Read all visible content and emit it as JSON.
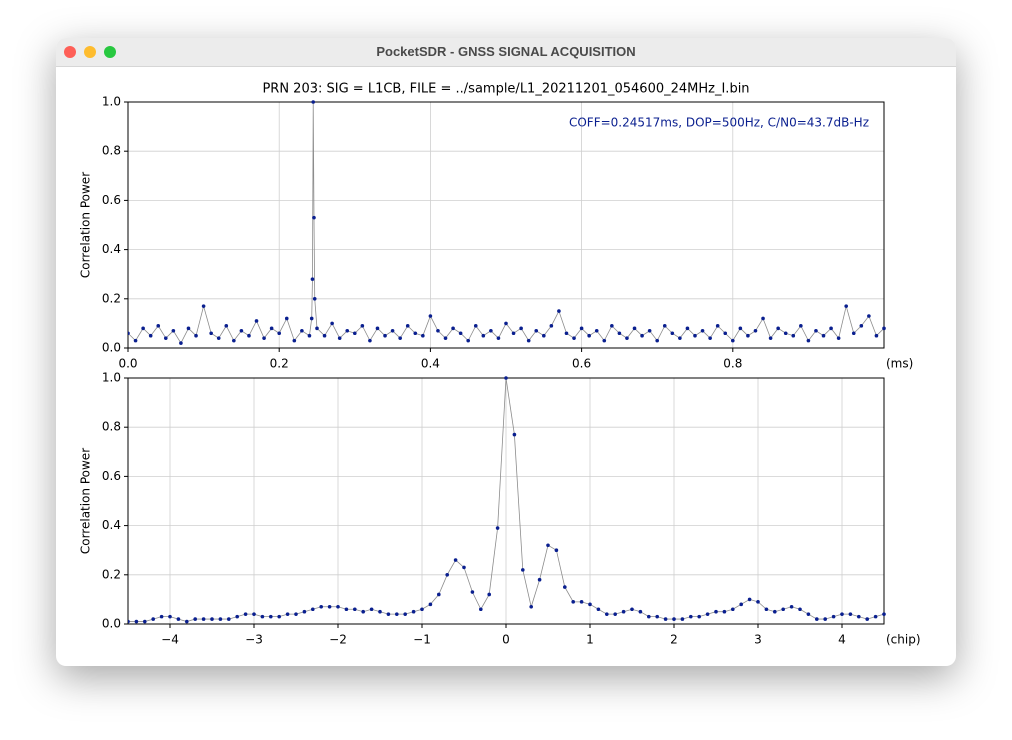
{
  "window": {
    "title": "PocketSDR - GNSS SIGNAL ACQUISITION"
  },
  "chart_data": [
    {
      "type": "line",
      "title": "PRN 203: SIG = L1CB, FILE = ../sample/L1_20211201_054600_24MHz_I.bin",
      "annotation": "COFF=0.24517ms, DOP=500Hz, C/N0=43.7dB-Hz",
      "y_label": "Correlation Power",
      "x_label": "(ms)",
      "xlim": [
        0,
        1.0
      ],
      "ylim": [
        0,
        1.0
      ],
      "xticks": [
        {
          "value": 0,
          "label": "0.0"
        },
        {
          "value": 0.2,
          "label": "0.2"
        },
        {
          "value": 0.4,
          "label": "0.4"
        },
        {
          "value": 0.6,
          "label": "0.6"
        },
        {
          "value": 0.8,
          "label": "0.8"
        }
      ],
      "yticks": [
        {
          "value": 0,
          "label": "0.0"
        },
        {
          "value": 0.2,
          "label": "0.2"
        },
        {
          "value": 0.4,
          "label": "0.4"
        },
        {
          "value": 0.6,
          "label": "0.6"
        },
        {
          "value": 0.8,
          "label": "0.8"
        },
        {
          "value": 1.0,
          "label": "1.0"
        }
      ],
      "grid": true,
      "line_color": "#8c8c8c",
      "series": [
        {
          "color": "#0a1f8f",
          "x": [
            0,
            0.01,
            0.02,
            0.03,
            0.04,
            0.05,
            0.06,
            0.07,
            0.08,
            0.09,
            0.1,
            0.11,
            0.12,
            0.13,
            0.14,
            0.15,
            0.16,
            0.17,
            0.18,
            0.19,
            0.2,
            0.21,
            0.22,
            0.23,
            0.24,
            0.243,
            0.244,
            0.245,
            0.246,
            0.247,
            0.25,
            0.26,
            0.27,
            0.28,
            0.29,
            0.3,
            0.31,
            0.32,
            0.33,
            0.34,
            0.35,
            0.36,
            0.37,
            0.38,
            0.39,
            0.4,
            0.41,
            0.42,
            0.43,
            0.44,
            0.45,
            0.46,
            0.47,
            0.48,
            0.49,
            0.5,
            0.51,
            0.52,
            0.53,
            0.54,
            0.55,
            0.56,
            0.57,
            0.58,
            0.59,
            0.6,
            0.61,
            0.62,
            0.63,
            0.64,
            0.65,
            0.66,
            0.67,
            0.68,
            0.69,
            0.7,
            0.71,
            0.72,
            0.73,
            0.74,
            0.75,
            0.76,
            0.77,
            0.78,
            0.79,
            0.8,
            0.81,
            0.82,
            0.83,
            0.84,
            0.85,
            0.86,
            0.87,
            0.88,
            0.89,
            0.9,
            0.91,
            0.92,
            0.93,
            0.94,
            0.95,
            0.96,
            0.97,
            0.98,
            0.99,
            1.0
          ],
          "values": [
            0.06,
            0.03,
            0.08,
            0.05,
            0.09,
            0.04,
            0.07,
            0.02,
            0.08,
            0.05,
            0.17,
            0.06,
            0.04,
            0.09,
            0.03,
            0.07,
            0.05,
            0.11,
            0.04,
            0.08,
            0.06,
            0.12,
            0.03,
            0.07,
            0.05,
            0.12,
            0.28,
            1.0,
            0.53,
            0.2,
            0.08,
            0.05,
            0.1,
            0.04,
            0.07,
            0.06,
            0.09,
            0.03,
            0.08,
            0.05,
            0.07,
            0.04,
            0.09,
            0.06,
            0.05,
            0.13,
            0.07,
            0.04,
            0.08,
            0.06,
            0.03,
            0.09,
            0.05,
            0.07,
            0.04,
            0.1,
            0.06,
            0.08,
            0.03,
            0.07,
            0.05,
            0.09,
            0.15,
            0.06,
            0.04,
            0.08,
            0.05,
            0.07,
            0.03,
            0.09,
            0.06,
            0.04,
            0.08,
            0.05,
            0.07,
            0.03,
            0.09,
            0.06,
            0.04,
            0.08,
            0.05,
            0.07,
            0.04,
            0.09,
            0.06,
            0.03,
            0.08,
            0.05,
            0.07,
            0.12,
            0.04,
            0.08,
            0.06,
            0.05,
            0.09,
            0.03,
            0.07,
            0.05,
            0.08,
            0.04,
            0.17,
            0.06,
            0.09,
            0.13,
            0.05,
            0.08
          ]
        }
      ]
    },
    {
      "type": "line",
      "y_label": "Correlation Power",
      "x_label": "(chip)",
      "xlim": [
        -4.5,
        4.5
      ],
      "ylim": [
        0,
        1.0
      ],
      "xticks": [
        {
          "value": -4,
          "label": "−4"
        },
        {
          "value": -3,
          "label": "−3"
        },
        {
          "value": -2,
          "label": "−2"
        },
        {
          "value": -1,
          "label": "−1"
        },
        0,
        1,
        2,
        3,
        4
      ],
      "yticks": [
        {
          "value": 0,
          "label": "0.0"
        },
        {
          "value": 0.2,
          "label": "0.2"
        },
        {
          "value": 0.4,
          "label": "0.4"
        },
        {
          "value": 0.6,
          "label": "0.6"
        },
        {
          "value": 0.8,
          "label": "0.8"
        },
        {
          "value": 1.0,
          "label": "1.0"
        }
      ],
      "grid": true,
      "line_color": "#8c8c8c",
      "series": [
        {
          "color": "#0a1f8f",
          "x": [
            -4.5,
            -4.4,
            -4.3,
            -4.2,
            -4.1,
            -4.0,
            -3.9,
            -3.8,
            -3.7,
            -3.6,
            -3.5,
            -3.4,
            -3.3,
            -3.2,
            -3.1,
            -3.0,
            -2.9,
            -2.8,
            -2.7,
            -2.6,
            -2.5,
            -2.4,
            -2.3,
            -2.2,
            -2.1,
            -2.0,
            -1.9,
            -1.8,
            -1.7,
            -1.6,
            -1.5,
            -1.4,
            -1.3,
            -1.2,
            -1.1,
            -1.0,
            -0.9,
            -0.8,
            -0.7,
            -0.6,
            -0.5,
            -0.4,
            -0.3,
            -0.2,
            -0.1,
            0.0,
            0.1,
            0.2,
            0.3,
            0.4,
            0.5,
            0.6,
            0.7,
            0.8,
            0.9,
            1.0,
            1.1,
            1.2,
            1.3,
            1.4,
            1.5,
            1.6,
            1.7,
            1.8,
            1.9,
            2.0,
            2.1,
            2.2,
            2.3,
            2.4,
            2.5,
            2.6,
            2.7,
            2.8,
            2.9,
            3.0,
            3.1,
            3.2,
            3.3,
            3.4,
            3.5,
            3.6,
            3.7,
            3.8,
            3.9,
            4.0,
            4.1,
            4.2,
            4.3,
            4.4,
            4.5
          ],
          "values": [
            0.01,
            0.01,
            0.01,
            0.02,
            0.03,
            0.03,
            0.02,
            0.01,
            0.02,
            0.02,
            0.02,
            0.02,
            0.02,
            0.03,
            0.04,
            0.04,
            0.03,
            0.03,
            0.03,
            0.04,
            0.04,
            0.05,
            0.06,
            0.07,
            0.07,
            0.07,
            0.06,
            0.06,
            0.05,
            0.06,
            0.05,
            0.04,
            0.04,
            0.04,
            0.05,
            0.06,
            0.08,
            0.12,
            0.2,
            0.26,
            0.23,
            0.13,
            0.06,
            0.12,
            0.39,
            1.0,
            0.77,
            0.22,
            0.07,
            0.18,
            0.32,
            0.3,
            0.15,
            0.09,
            0.09,
            0.08,
            0.06,
            0.04,
            0.04,
            0.05,
            0.06,
            0.05,
            0.03,
            0.03,
            0.02,
            0.02,
            0.02,
            0.03,
            0.03,
            0.04,
            0.05,
            0.05,
            0.06,
            0.08,
            0.1,
            0.09,
            0.06,
            0.05,
            0.06,
            0.07,
            0.06,
            0.04,
            0.02,
            0.02,
            0.03,
            0.04,
            0.04,
            0.03,
            0.02,
            0.03,
            0.04
          ]
        }
      ]
    }
  ]
}
